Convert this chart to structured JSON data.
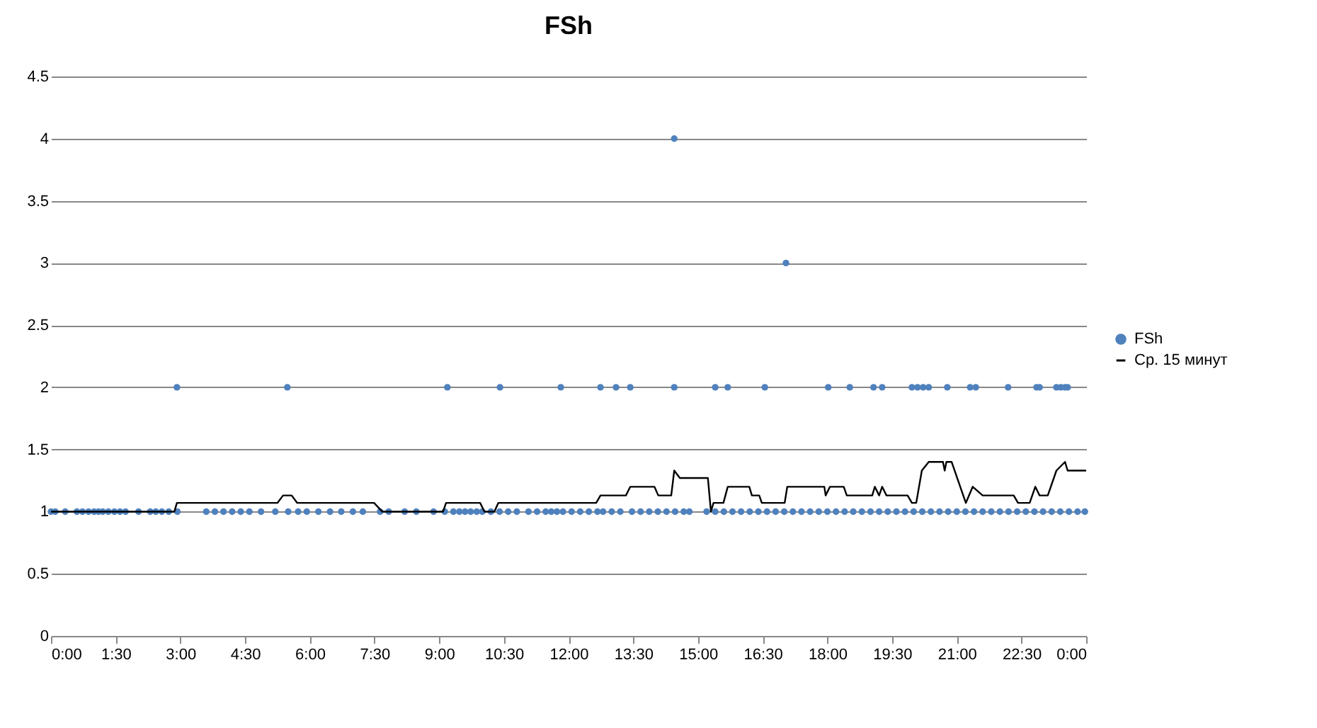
{
  "chart_data": {
    "type": "scatter",
    "title": "FSh",
    "legend": "right",
    "grid": "y",
    "xlim": [
      0,
      24
    ],
    "ylim": [
      0,
      4.5
    ],
    "xticks": [
      {
        "value": 0,
        "label": "0:00"
      },
      {
        "value": 1.5,
        "label": "1:30"
      },
      {
        "value": 3,
        "label": "3:00"
      },
      {
        "value": 4.5,
        "label": "4:30"
      },
      {
        "value": 6,
        "label": "6:00"
      },
      {
        "value": 7.5,
        "label": "7:30"
      },
      {
        "value": 9,
        "label": "9:00"
      },
      {
        "value": 10.5,
        "label": "10:30"
      },
      {
        "value": 12,
        "label": "12:00"
      },
      {
        "value": 13.5,
        "label": "13:30"
      },
      {
        "value": 15,
        "label": "15:00"
      },
      {
        "value": 16.5,
        "label": "16:30"
      },
      {
        "value": 18,
        "label": "18:00"
      },
      {
        "value": 19.5,
        "label": "19:30"
      },
      {
        "value": 21,
        "label": "21:00"
      },
      {
        "value": 22.5,
        "label": "22:30"
      },
      {
        "value": 24,
        "label": "0:00"
      }
    ],
    "yticks": [
      0,
      0.5,
      1,
      1.5,
      2,
      2.5,
      3,
      3.5,
      4,
      4.5
    ],
    "series": [
      {
        "name": "FSh",
        "color": "#4f81bd",
        "x": [
          0,
          0.1,
          0.33,
          0.6,
          0.73,
          0.87,
          1,
          1.1,
          1.2,
          1.33,
          1.47,
          1.6,
          1.73,
          2.03,
          2.3,
          2.43,
          2.57,
          2.73,
          2.93,
          3.6,
          3.8,
          4,
          4.2,
          4.4,
          4.6,
          4.87,
          5.2,
          5.5,
          5.73,
          5.93,
          6.2,
          6.47,
          6.73,
          7,
          7.23,
          7.63,
          7.83,
          8.2,
          8.47,
          8.87,
          9.13,
          9.33,
          9.47,
          9.6,
          9.73,
          9.87,
          10,
          10.2,
          10.4,
          10.6,
          10.8,
          11.07,
          11.27,
          11.47,
          11.6,
          11.73,
          11.87,
          12.07,
          12.27,
          12.47,
          12.67,
          12.8,
          13,
          13.2,
          13.47,
          13.67,
          13.87,
          14.07,
          14.27,
          14.47,
          14.67,
          14.8,
          15.2,
          15.4,
          15.6,
          15.8,
          16,
          16.2,
          16.4,
          16.6,
          16.8,
          17,
          17.2,
          17.4,
          17.6,
          17.8,
          18,
          18.2,
          18.4,
          18.6,
          18.8,
          19,
          19.2,
          19.4,
          19.6,
          19.8,
          20,
          20.2,
          20.4,
          20.6,
          20.8,
          21,
          21.2,
          21.4,
          21.6,
          21.8,
          22,
          22.2,
          22.4,
          22.6,
          22.8,
          23,
          23.2,
          23.4,
          23.6,
          23.8,
          23.97,
          2.92,
          5.48,
          9.19,
          10.41,
          11.82,
          12.74,
          13.1,
          13.43,
          14.45,
          15.4,
          15.69,
          16.55,
          18.02,
          18.52,
          19.07,
          19.27,
          19.96,
          20.09,
          20.22,
          20.35,
          20.78,
          21.31,
          21.44,
          22.19,
          22.85,
          22.92,
          23.31,
          23.41,
          23.51,
          23.57,
          14.45,
          17.04
        ],
        "values": [
          1,
          1,
          1,
          1,
          1,
          1,
          1,
          1,
          1,
          1,
          1,
          1,
          1,
          1,
          1,
          1,
          1,
          1,
          1,
          1,
          1,
          1,
          1,
          1,
          1,
          1,
          1,
          1,
          1,
          1,
          1,
          1,
          1,
          1,
          1,
          1,
          1,
          1,
          1,
          1,
          1,
          1,
          1,
          1,
          1,
          1,
          1,
          1,
          1,
          1,
          1,
          1,
          1,
          1,
          1,
          1,
          1,
          1,
          1,
          1,
          1,
          1,
          1,
          1,
          1,
          1,
          1,
          1,
          1,
          1,
          1,
          1,
          1,
          1,
          1,
          1,
          1,
          1,
          1,
          1,
          1,
          1,
          1,
          1,
          1,
          1,
          1,
          1,
          1,
          1,
          1,
          1,
          1,
          1,
          1,
          1,
          1,
          1,
          1,
          1,
          1,
          1,
          1,
          1,
          1,
          1,
          1,
          1,
          1,
          1,
          1,
          1,
          1,
          1,
          1,
          1,
          1,
          2,
          2,
          2,
          2,
          2,
          2,
          2,
          2,
          2,
          2,
          2,
          2,
          2,
          2,
          2,
          2,
          2,
          2,
          2,
          2,
          2,
          2,
          2,
          2,
          2,
          2,
          2,
          2,
          2,
          2,
          4,
          3
        ]
      },
      {
        "name": "Ср. 15 минут",
        "type": "line",
        "color": "#000000",
        "x": [
          0,
          2.86,
          2.92,
          5.25,
          5.38,
          5.58,
          5.71,
          7.49,
          7.68,
          9.09,
          9.16,
          9.95,
          10.05,
          10.28,
          10.37,
          12.64,
          12.74,
          13.33,
          13.43,
          13.99,
          14.08,
          14.38,
          14.45,
          14.58,
          15.23,
          15.3,
          15.36,
          15.59,
          15.69,
          16.19,
          16.25,
          16.42,
          16.48,
          17.01,
          17.07,
          17.93,
          17.96,
          18.06,
          18.38,
          18.45,
          19.04,
          19.1,
          19.2,
          19.27,
          19.37,
          19.86,
          19.96,
          20.06,
          20.19,
          20.35,
          20.68,
          20.72,
          20.76,
          20.88,
          21.21,
          21.37,
          21.6,
          22.32,
          22.42,
          22.69,
          22.82,
          22.92,
          23.11,
          23.31,
          23.51,
          23.57,
          24
        ],
        "values": [
          1,
          1,
          1.07,
          1.07,
          1.13,
          1.13,
          1.07,
          1.07,
          1,
          1,
          1.07,
          1.07,
          1,
          1,
          1.07,
          1.07,
          1.13,
          1.13,
          1.2,
          1.2,
          1.13,
          1.13,
          1.33,
          1.27,
          1.27,
          1,
          1.07,
          1.07,
          1.2,
          1.2,
          1.13,
          1.13,
          1.07,
          1.07,
          1.2,
          1.2,
          1.13,
          1.2,
          1.2,
          1.13,
          1.13,
          1.2,
          1.13,
          1.2,
          1.13,
          1.13,
          1.07,
          1.07,
          1.33,
          1.4,
          1.4,
          1.33,
          1.4,
          1.4,
          1.07,
          1.2,
          1.13,
          1.13,
          1.07,
          1.07,
          1.2,
          1.13,
          1.13,
          1.33,
          1.4,
          1.33,
          1.33
        ]
      }
    ]
  }
}
